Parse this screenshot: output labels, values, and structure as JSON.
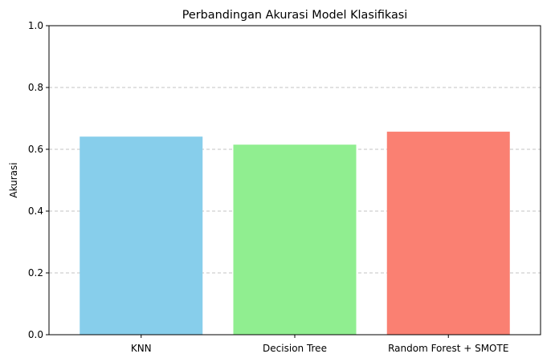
{
  "chart_data": {
    "type": "bar",
    "title": "Perbandingan Akurasi Model Klasifikasi",
    "xlabel": "",
    "ylabel": "Akurasi",
    "categories": [
      "KNN",
      "Decision Tree",
      "Random Forest + SMOTE"
    ],
    "values": [
      0.641,
      0.615,
      0.657
    ],
    "colors": [
      "#87CEEB",
      "#90EE90",
      "#FA8072"
    ],
    "ylim": [
      0,
      1.0
    ],
    "yticks": [
      "0.0",
      "0.2",
      "0.4",
      "0.6",
      "0.8",
      "1.0"
    ],
    "ytick_values": [
      0,
      0.2,
      0.4,
      0.6,
      0.8,
      1.0
    ],
    "grid": "y-dashed"
  }
}
